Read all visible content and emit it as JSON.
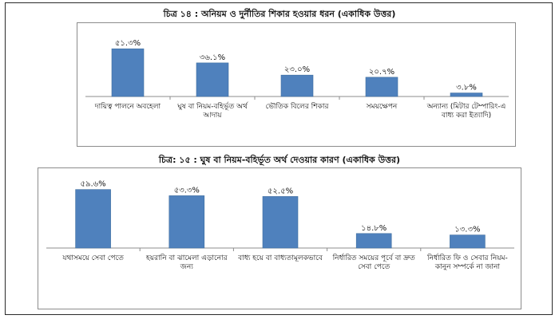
{
  "colors": {
    "bar": "#4f81bd",
    "bar_stroke": "#3f6e9f",
    "axis": "#8c8c8c",
    "frame": "#2a2a2a"
  },
  "chart_data": [
    {
      "type": "bar",
      "title": "চিত্র ১৪ : অনিয়ম ও দুর্নীতির শিকার হওয়ার ধরন (একাধিক উত্তর)",
      "categories": [
        "দায়িত্ব পালনে অবহেলা",
        "ঘুষ বা নিয়ম-বহির্ভূত অর্থ আদায়",
        "ভৌতিক বিলের শিকার",
        "সময়ক্ষেপন",
        "অন্যান্য (মিটার টেম্পারিং-এ বাধ্য করা ইত্যাদি)"
      ],
      "values": [
        51.3,
        36.1,
        23.0,
        20.7,
        3.8
      ],
      "data_labels": [
        "৫১.৩%",
        "৩৬.১%",
        "২৩.০%",
        "২০.৭%",
        "৩.৮%"
      ],
      "ylim": [
        0,
        60
      ],
      "grid": false,
      "legend": "none"
    },
    {
      "type": "bar",
      "title": "চিত্র: ১৫ : ঘুষ বা নিয়ম-বহির্ভূত অর্থ দেওয়ার কারণ (একাধিক উত্তর)",
      "categories": [
        "যথাসময়ে সেবা পেতে",
        "হয়রানি বা ঝামেলা এড়ানোর জন্য",
        "বাধ্য হয়ে বা বাধ্যতামূলকভাবে",
        "নির্ধারিত সময়ের পূর্বে বা দ্রুত সেবা পেতে",
        "নির্ধারিত ফি ও সেবার নিয়ম-কানুন সম্পর্কে না জানা"
      ],
      "values": [
        59.6,
        53.3,
        52.5,
        14.8,
        13.3
      ],
      "data_labels": [
        "৫৯.৬%",
        "৫৩.৩%",
        "৫২.৫%",
        "১৪.৮%",
        "১৩.৩%"
      ],
      "ylim": [
        0,
        65
      ],
      "grid": false,
      "legend": "none"
    }
  ]
}
